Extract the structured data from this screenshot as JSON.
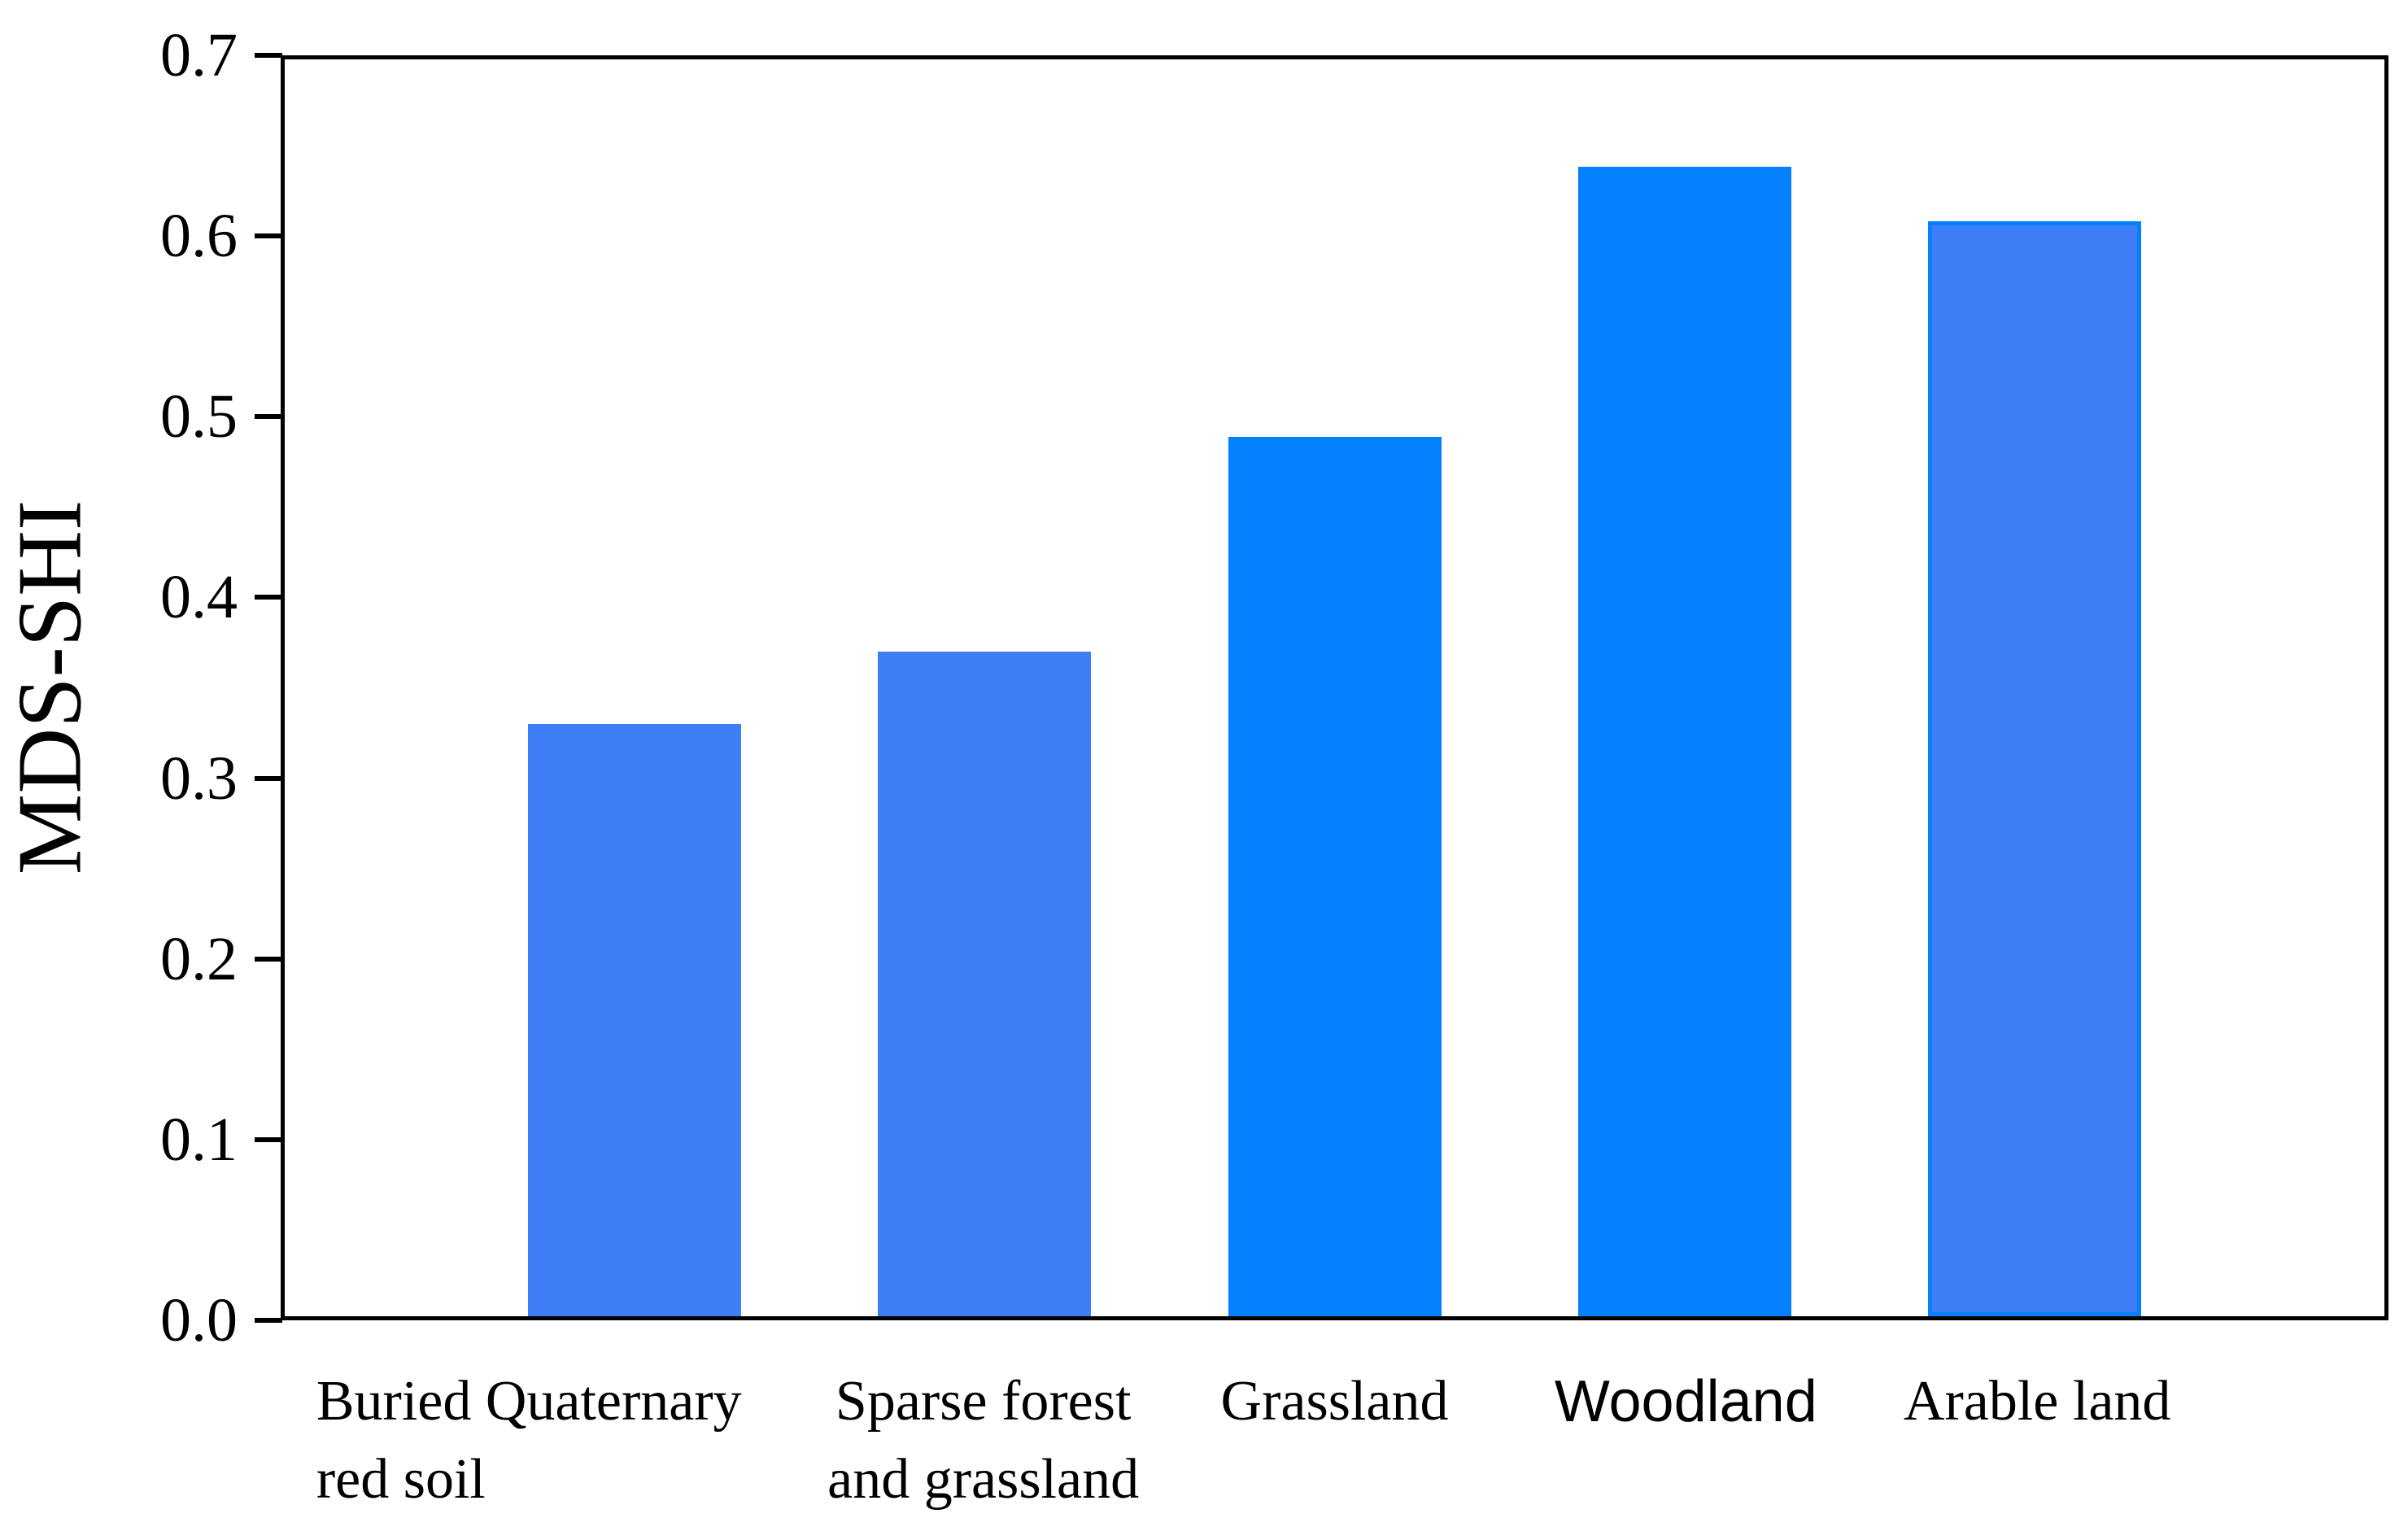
{
  "chart_data": {
    "type": "bar",
    "title": "",
    "xlabel": "",
    "ylabel": "MDS-SHI",
    "ylim": [
      0.0,
      0.7
    ],
    "grid": false,
    "legend": "none",
    "background_color": "#FFFFFF",
    "axis_color": "#000000",
    "text_color": "#000000",
    "ytick_labels": [
      "0.0",
      "0.1",
      "0.2",
      "0.3",
      "0.4",
      "0.5",
      "0.6",
      "0.7"
    ],
    "ytick_values": [
      0.0,
      0.1,
      0.2,
      0.3,
      0.4,
      0.5,
      0.6,
      0.7
    ],
    "categories": [
      "Buried Quaternary red soil",
      "Sparse forest and grassland",
      "Grassland",
      "Woodland",
      "Arable land"
    ],
    "category_lines": [
      [
        "Buried Quaternary",
        "red soil"
      ],
      [
        "Sparse forest",
        "and grassland"
      ],
      [
        "Grassland"
      ],
      [
        "Woodland"
      ],
      [
        "Arable land"
      ]
    ],
    "values": [
      0.33,
      0.37,
      0.49,
      0.64,
      0.61
    ],
    "bar_fill_colors": [
      "#3E7FF7",
      "#3E7FF7",
      "#0280FE",
      "#0280FE",
      "#3E7FF7"
    ],
    "bar_border_colors": [
      "#3E7FF7",
      "#3E7FF7",
      "#0280FE",
      "#0280FE",
      "#0780FE"
    ],
    "bar_border_widths": [
      0,
      0,
      0,
      0,
      5
    ],
    "label_font_classes": [
      "serif",
      "serif",
      "serif",
      "sans",
      "serif"
    ],
    "label_aligns": [
      "left",
      "center",
      "center",
      "center",
      "center"
    ]
  }
}
